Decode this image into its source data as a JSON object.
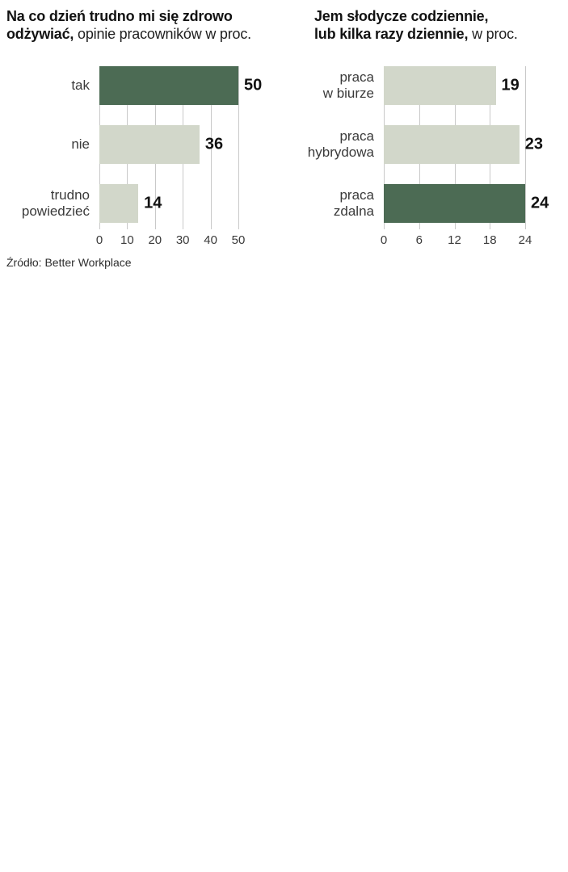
{
  "page": {
    "background": "#ffffff",
    "source": "Źródło: Better Workplace"
  },
  "colors": {
    "dark": "#4c6b54",
    "light": "#d2d7ca",
    "grid": "#c9c9c9",
    "title_text": "#121212",
    "label_text": "#3a3a3a"
  },
  "chart_data": [
    {
      "type": "bar",
      "orientation": "horizontal",
      "title": {
        "line1_bold": "Na co dzień trudno mi się zdrowo",
        "line2_bold": "odżywiać,",
        "line2_regular": " opinie pracowników w proc."
      },
      "categories": [
        [
          "tak"
        ],
        [
          "nie"
        ],
        [
          "trudno",
          "powiedzieć"
        ]
      ],
      "values": [
        50,
        36,
        14
      ],
      "bar_styles": [
        "dark",
        "light",
        "light"
      ],
      "xlim": [
        0,
        50
      ],
      "xticks": [
        0,
        10,
        20,
        30,
        40,
        50
      ],
      "grid": true,
      "legend": false
    },
    {
      "type": "bar",
      "orientation": "horizontal",
      "title": {
        "line1_bold": "Jem słodycze codziennie,",
        "line2_bold": "lub kilka razy dziennie,",
        "line2_regular": " w proc."
      },
      "categories": [
        [
          "praca",
          "w biurze"
        ],
        [
          "praca",
          "hybrydowa"
        ],
        [
          "praca",
          "zdalna"
        ]
      ],
      "values": [
        19,
        23,
        24
      ],
      "bar_styles": [
        "light",
        "light",
        "dark"
      ],
      "xlim": [
        0,
        24
      ],
      "xticks": [
        0,
        6,
        12,
        18,
        24
      ],
      "grid": true,
      "legend": false
    }
  ]
}
